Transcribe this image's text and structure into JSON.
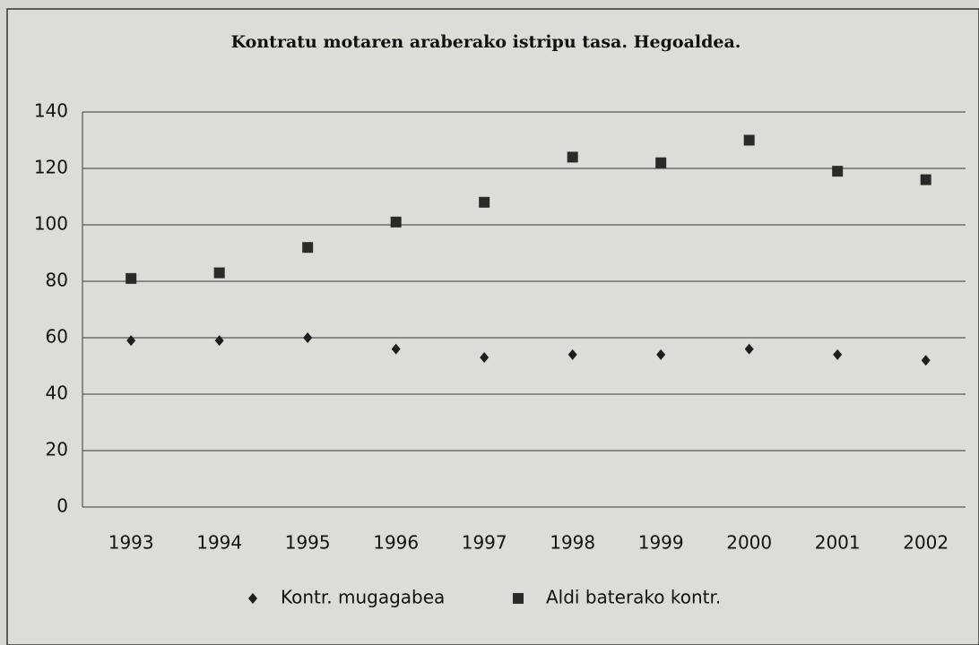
{
  "chart_data": {
    "type": "scatter",
    "title": "Kontratu motaren araberako istripu tasa. Hegoaldea.",
    "categories": [
      "1993",
      "1994",
      "1995",
      "1996",
      "1997",
      "1998",
      "1999",
      "2000",
      "2001",
      "2002"
    ],
    "series": [
      {
        "name": "Kontr. mugagabea",
        "color": "#1e1e1e",
        "marker": "diamond",
        "values": [
          59,
          59,
          60,
          56,
          53,
          54,
          54,
          56,
          54,
          52
        ]
      },
      {
        "name": "Aldi baterako kontr.",
        "color": "#2a2a2a",
        "marker": "square",
        "values": [
          81,
          83,
          92,
          101,
          108,
          124,
          122,
          130,
          119,
          116
        ]
      }
    ],
    "ylim": [
      0,
      140
    ],
    "yticks": [
      0,
      20,
      40,
      60,
      80,
      100,
      120,
      140
    ],
    "grid": true,
    "legend": "bottom"
  }
}
